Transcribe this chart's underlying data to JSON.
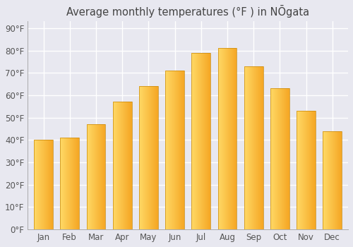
{
  "title": "Average monthly temperatures (°F ) in NŌgata",
  "months": [
    "Jan",
    "Feb",
    "Mar",
    "Apr",
    "May",
    "Jun",
    "Jul",
    "Aug",
    "Sep",
    "Oct",
    "Nov",
    "Dec"
  ],
  "values": [
    40,
    41,
    47,
    57,
    64,
    71,
    79,
    81,
    73,
    63,
    53,
    44
  ],
  "bar_color_left": "#FFD966",
  "bar_color_right": "#F5A623",
  "bar_edge_color": "#B8860B",
  "background_color": "#E8E8F0",
  "grid_color": "#FFFFFF",
  "title_color": "#444444",
  "tick_color": "#555555",
  "ylim": [
    0,
    93
  ],
  "yticks": [
    0,
    10,
    20,
    30,
    40,
    50,
    60,
    70,
    80,
    90
  ],
  "ytick_labels": [
    "0°F",
    "10°F",
    "20°F",
    "30°F",
    "40°F",
    "50°F",
    "60°F",
    "70°F",
    "80°F",
    "90°F"
  ],
  "title_fontsize": 10.5,
  "tick_fontsize": 8.5
}
